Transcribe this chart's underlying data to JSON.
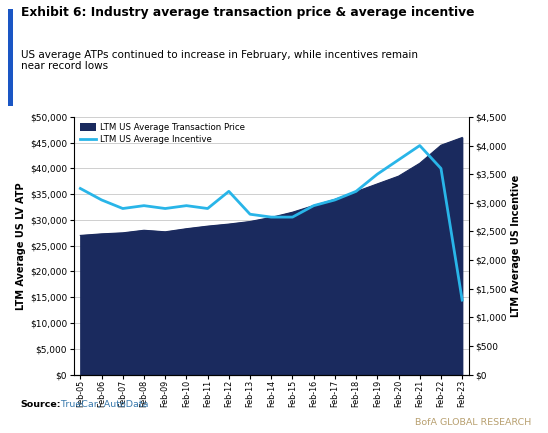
{
  "title": "Exhibit 6: Industry average transaction price & average incentive",
  "subtitle": "US average ATPs continued to increase in February, while incentives remain\nnear record lows",
  "ylabel_left": "LTM Average US LV ATP",
  "ylabel_right": "LTM Average US Incentive",
  "source_bold": "Source:",
  "source_normal": " TrueCar, AutoData",
  "branding": "BofA GLOBAL RESEARCH",
  "x_labels": [
    "Feb-05",
    "Feb-06",
    "Feb-07",
    "Feb-08",
    "Feb-09",
    "Feb-10",
    "Feb-11",
    "Feb-12",
    "Feb-13",
    "Feb-14",
    "Feb-15",
    "Feb-16",
    "Feb-17",
    "Feb-18",
    "Feb-19",
    "Feb-20",
    "Feb-21",
    "Feb-22",
    "Feb-23"
  ],
  "atp_values": [
    27000,
    27300,
    27500,
    28000,
    27700,
    28300,
    28800,
    29200,
    29700,
    30500,
    31500,
    32800,
    34000,
    35500,
    37000,
    38500,
    41000,
    44500,
    46000
  ],
  "incentive_values": [
    3250,
    3050,
    2900,
    2950,
    2900,
    2950,
    2900,
    3200,
    2800,
    2750,
    2750,
    2950,
    3050,
    3200,
    3500,
    3750,
    4000,
    3600,
    1300
  ],
  "atp_color": "#1a2a5e",
  "incentive_color": "#29b5e8",
  "left_ylim": [
    0,
    50000
  ],
  "right_ylim": [
    0,
    4500
  ],
  "left_yticks": [
    0,
    5000,
    10000,
    15000,
    20000,
    25000,
    30000,
    35000,
    40000,
    45000,
    50000
  ],
  "right_yticks": [
    0,
    500,
    1000,
    1500,
    2000,
    2500,
    3000,
    3500,
    4000,
    4500
  ],
  "grid_color": "#c8c8c8",
  "accent_color": "#1a56c4",
  "background_color": "#ffffff",
  "legend_labels": [
    "LTM US Average Transaction Price",
    "LTM US Average Incentive"
  ]
}
